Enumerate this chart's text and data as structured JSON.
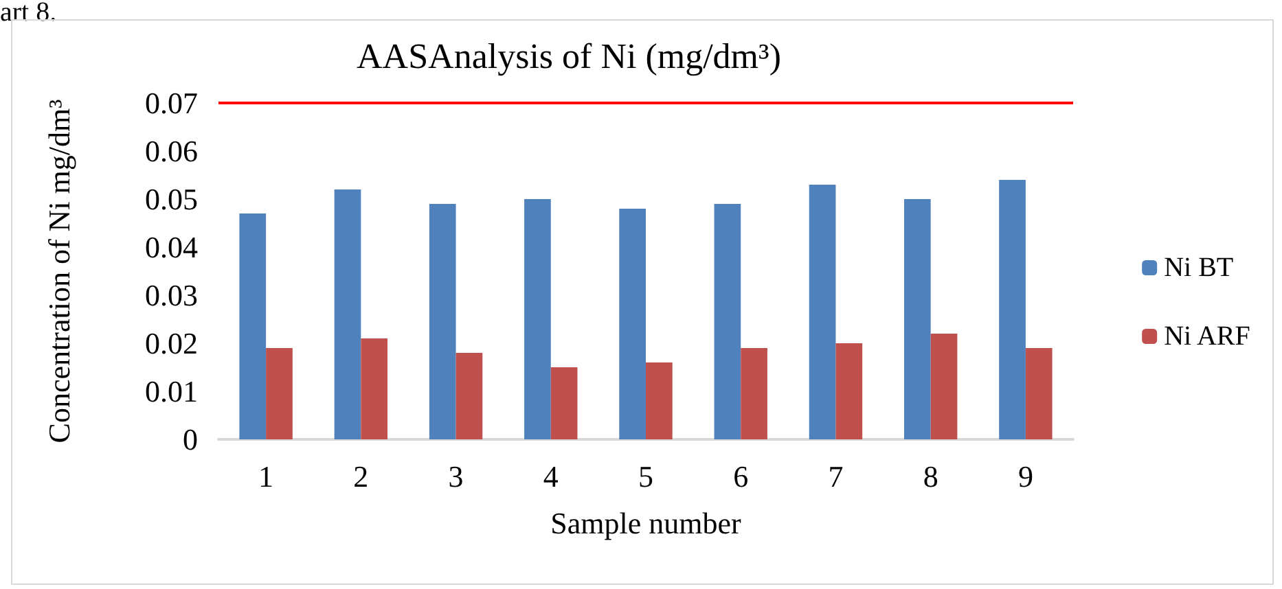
{
  "chart_data": {
    "type": "bar",
    "title": "AASAnalysis of Ni (mg/dm³)",
    "xlabel": "Sample number",
    "ylabel": "Concentration of Ni mg/dm³",
    "annotations": [
      "art 8."
    ],
    "categories": [
      "1",
      "2",
      "3",
      "4",
      "5",
      "6",
      "7",
      "8",
      "9"
    ],
    "series": [
      {
        "name": "Ni BT",
        "color": "#4f81bd",
        "values": [
          0.047,
          0.052,
          0.049,
          0.05,
          0.048,
          0.049,
          0.053,
          0.05,
          0.054
        ]
      },
      {
        "name": "Ni ARF",
        "color": "#c0504d",
        "values": [
          0.019,
          0.021,
          0.018,
          0.015,
          0.016,
          0.019,
          0.02,
          0.022,
          0.019
        ]
      }
    ],
    "ylim": [
      0,
      0.07
    ],
    "yticks": [
      0,
      0.01,
      0.02,
      0.03,
      0.04,
      0.05,
      0.06,
      0.07
    ],
    "grid": false,
    "legend": "right",
    "ref_lines": [
      {
        "axis": "y",
        "value": 0.07,
        "color": "#ff0000",
        "line_style": "solid"
      }
    ]
  }
}
